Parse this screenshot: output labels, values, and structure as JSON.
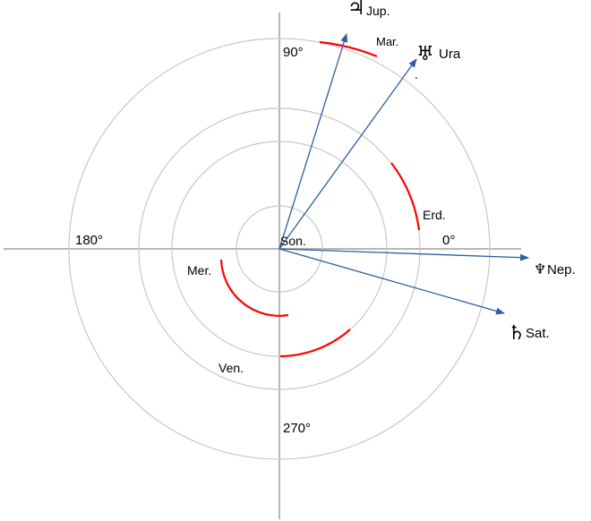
{
  "angles": {
    "deg90": "90°",
    "deg180": "180°",
    "deg0": "0°",
    "deg270": "270°"
  },
  "bodies": {
    "sun": "Son.",
    "mercury": "Mer.",
    "venus": "Ven.",
    "earth": "Erd.",
    "mars": "Mar.",
    "jupiter": "Jup.",
    "uranus": "Ura",
    "neptune": "Nep.",
    "saturn": "Sat."
  },
  "symbols": {
    "jupiter": "♃",
    "uranus": "♅",
    "neptune": "♆",
    "saturn": "♄"
  },
  "stray_mark": ".",
  "colors": {
    "orbit_circle": "#c8c8c8",
    "axis": "#a0a0a0",
    "orbit_arc": "#ff0000",
    "direction_arrow": "#2e5f9e"
  }
}
